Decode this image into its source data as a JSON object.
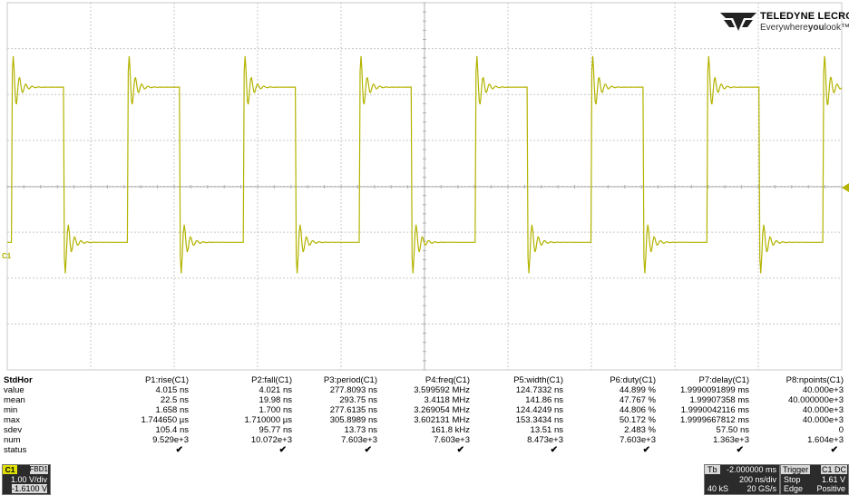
{
  "brand": {
    "name": "TELEDYNE LECROY",
    "tagline_a": "Everywhere",
    "tagline_b": "you",
    "tagline_c": "look",
    "tagline_tm": "™"
  },
  "channel_marker": "C1",
  "colors": {
    "trace": "#b3b300",
    "grid": "#c8c8c8",
    "c1": "#e0e000"
  },
  "table": {
    "headers": [
      "P1:rise(C1)",
      "P2:fall(C1)",
      "P3:period(C1)",
      "P4:freq(C1)",
      "P5:width(C1)",
      "P6:duty(C1)",
      "P7:delay(C1)",
      "P8:npoints(C1)"
    ],
    "rows": [
      {
        "label": "value",
        "cells": [
          "4.015 ns",
          "4.021 ns",
          "277.8093 ns",
          "3.599592 MHz",
          "124.7332 ns",
          "44.899 %",
          "1.9990091899 ms",
          "40.000e+3"
        ]
      },
      {
        "label": "mean",
        "cells": [
          "22.5 ns",
          "19.98 ns",
          "293.75 ns",
          "3.4118 MHz",
          "141.86 ns",
          "47.767 %",
          "1.99907358 ms",
          "40.000000e+3"
        ]
      },
      {
        "label": "min",
        "cells": [
          "1.658 ns",
          "1.700 ns",
          "277.6135 ns",
          "3.269054 MHz",
          "124.4249 ns",
          "44.806 %",
          "1.9990042116 ms",
          "40.000e+3"
        ]
      },
      {
        "label": "max",
        "cells": [
          "1.744650 µs",
          "1.710000 µs",
          "305.8989 ns",
          "3.602131 MHz",
          "153.3434 ns",
          "50.172 %",
          "1.9999667812 ms",
          "40.000e+3"
        ]
      },
      {
        "label": "sdev",
        "cells": [
          "105.4 ns",
          "95.77 ns",
          "13.73 ns",
          "161.8 kHz",
          "13.51 ns",
          "2.483 %",
          "57.50 ns",
          "0"
        ]
      },
      {
        "label": "num",
        "cells": [
          "9.529e+3",
          "10.072e+3",
          "7.603e+3",
          "7.603e+3",
          "8.473e+3",
          "7.603e+3",
          "1.363e+3",
          "1.604e+3"
        ]
      },
      {
        "label": "status",
        "cells": [
          "✔",
          "✔",
          "✔",
          "✔",
          "✔",
          "✔",
          "✔",
          "✔"
        ]
      }
    ],
    "title": "StdHor"
  },
  "c1_box": {
    "tag": "C1",
    "flags": "FBD1",
    "vdiv": "1.00 V/div",
    "offset": "-1.6100 V"
  },
  "timebase": {
    "label": "Tb",
    "delay": "-2.000000 ms",
    "tdiv": "200 ns/div",
    "samples": "40 kS",
    "rate": "20 GS/s"
  },
  "trigger": {
    "label": "Trigger",
    "src": "C1",
    "coupling": "DC",
    "mode": "Stop",
    "level": "1.61 V",
    "type": "Edge",
    "slope": "Positive"
  },
  "waveform": {
    "period_ns": 277.8,
    "high_v": 1.78,
    "low_v": -1.6,
    "duty": 0.449,
    "first_rise_ns": 10
  }
}
